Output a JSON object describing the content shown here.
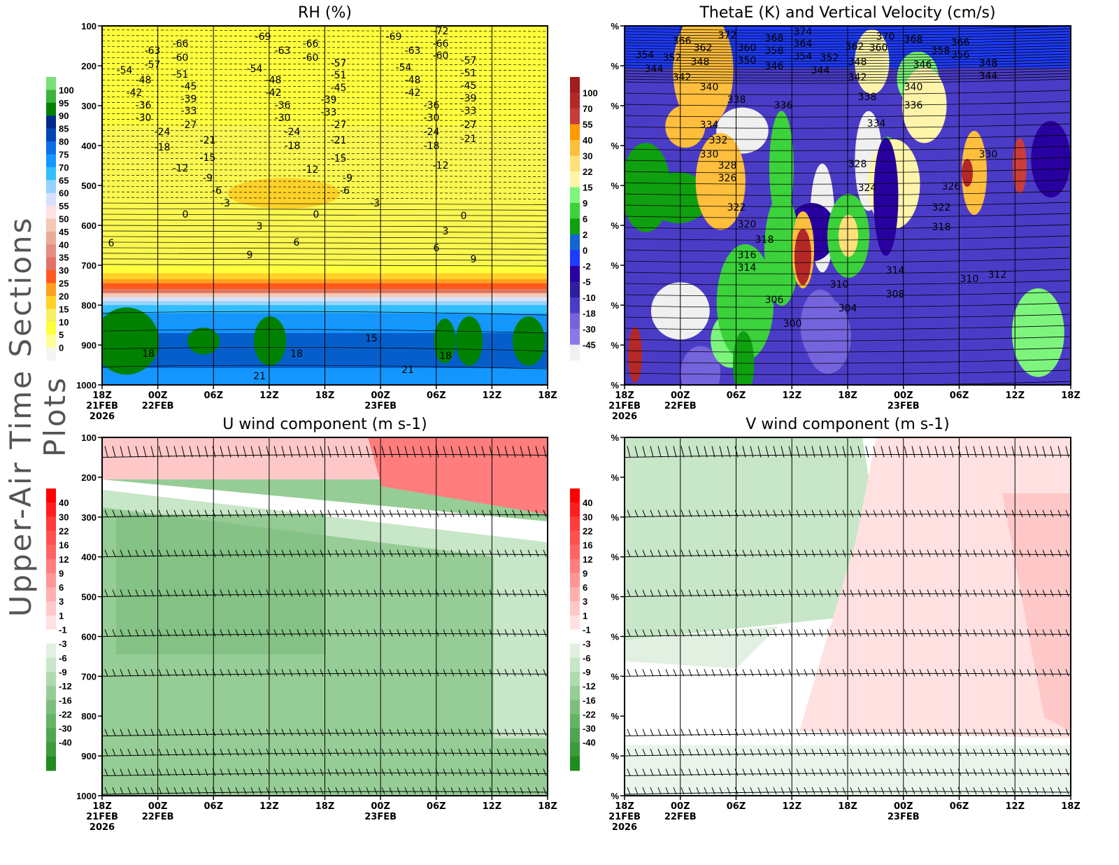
{
  "side_title": "Upper-Air Time Sections Plots",
  "x_ticks": [
    {
      "time": "18Z",
      "date": "21FEB",
      "year": "2026"
    },
    {
      "time": "00Z",
      "date": "22FEB",
      "year": ""
    },
    {
      "time": "06Z",
      "date": "",
      "year": ""
    },
    {
      "time": "12Z",
      "date": "",
      "year": ""
    },
    {
      "time": "18Z",
      "date": "",
      "year": ""
    },
    {
      "time": "00Z",
      "date": "23FEB",
      "year": ""
    },
    {
      "time": "06Z",
      "date": "",
      "year": ""
    },
    {
      "time": "12Z",
      "date": "",
      "year": ""
    },
    {
      "time": "18Z",
      "date": "",
      "year": ""
    }
  ],
  "chart_data": [
    {
      "type": "heatmap",
      "title": "RH (%)",
      "y_ticks": [
        "100",
        "200",
        "300",
        "400",
        "500",
        "600",
        "700",
        "800",
        "900",
        "1000"
      ],
      "ylim": [
        1000,
        100
      ],
      "colorbar": {
        "labels": [
          "100",
          "95",
          "90",
          "85",
          "80",
          "75",
          "70",
          "65",
          "60",
          "55",
          "50",
          "45",
          "40",
          "35",
          "30",
          "25",
          "20",
          "15",
          "10",
          "5",
          "0"
        ],
        "colors": [
          "#78e078",
          "#3cb43c",
          "#008200",
          "#002a8c",
          "#0046b4",
          "#0a6ee6",
          "#1496ff",
          "#32beff",
          "#96d2ff",
          "#d7e1ff",
          "#ffe1e6",
          "#f5c8b4",
          "#ebaa96",
          "#e68c82",
          "#e17364",
          "#ff5a1e",
          "#ffa01e",
          "#ffd228",
          "#f5f064",
          "#ffff3c",
          "#ffff96",
          "#f5f5f5"
        ]
      },
      "contour_labels": [
        "-69",
        "-66",
        "-63",
        "-60",
        "-57",
        "-54",
        "-48",
        "-51",
        "-45",
        "-42",
        "-39",
        "-36",
        "-33",
        "-30",
        "-27",
        "-24",
        "-21",
        "-18",
        "-15",
        "-12",
        "-9",
        "-6",
        "-3",
        "0",
        "3",
        "6",
        "9",
        "18",
        "21",
        "-63",
        "-66",
        "-60",
        "-54",
        "-48",
        "-42",
        "-36",
        "-30",
        "-24",
        "-18",
        "-57",
        "-51",
        "-45",
        "-39",
        "-33",
        "-27",
        "-21",
        "-15",
        "-12",
        "-9",
        "-6",
        "0",
        "6",
        "18",
        "15",
        "-3",
        "-69",
        "-72",
        "-66",
        "-63",
        "-60",
        "-54",
        "-48",
        "-42",
        "-57",
        "-51",
        "-45",
        "-39",
        "-36",
        "-33",
        "-30",
        "-27",
        "-24",
        "-21",
        "-18",
        "-12",
        "0",
        "3",
        "6",
        "9",
        "21",
        "18"
      ]
    },
    {
      "type": "heatmap",
      "title": "ThetaE (K) and Vertical Velocity (cm/s)",
      "y_ticks": [
        "%",
        "%",
        "%",
        "%",
        "%",
        "%",
        "%",
        "%",
        "%",
        "%"
      ],
      "colorbar": {
        "labels": [
          "100",
          "70",
          "55",
          "40",
          "30",
          "22",
          "15",
          "9",
          "6",
          "2",
          "0",
          "-2",
          "-5",
          "-10",
          "-18",
          "-30",
          "-45"
        ],
        "colors": [
          "#a01e1e",
          "#b42828",
          "#c83c3c",
          "#ff9b00",
          "#ffbe3c",
          "#ffe178",
          "#fff5aa",
          "#7df57d",
          "#3cd23c",
          "#0fa00f",
          "#1464d2",
          "#1e3cff",
          "#2800a0",
          "#2d1ea0",
          "#4b3cc8",
          "#7564dc",
          "#8c78eb",
          "#f0f0f0"
        ]
      },
      "contour_labels": [
        "372",
        "374",
        "366",
        "368",
        "370",
        "368",
        "362",
        "360",
        "358",
        "364",
        "362",
        "360",
        "358",
        "366",
        "356",
        "354",
        "352",
        "348",
        "350",
        "346",
        "354",
        "352",
        "348",
        "346",
        "348",
        "344",
        "344",
        "344",
        "342",
        "342",
        "340",
        "340",
        "338",
        "338",
        "336",
        "336",
        "334",
        "334",
        "332",
        "330",
        "330",
        "328",
        "328",
        "326",
        "326",
        "324",
        "322",
        "322",
        "320",
        "318",
        "318",
        "316",
        "314",
        "314",
        "312",
        "310",
        "310",
        "308",
        "306",
        "304",
        "300"
      ]
    },
    {
      "type": "heatmap",
      "title": "U wind component (m s-1)",
      "y_ticks": [
        "100",
        "200",
        "300",
        "400",
        "500",
        "600",
        "700",
        "800",
        "900",
        "1000"
      ],
      "ylim": [
        1000,
        100
      ],
      "colorbar": {
        "labels": [
          "40",
          "30",
          "22",
          "16",
          "12",
          "9",
          "6",
          "3",
          "1",
          "-1",
          "-3",
          "-6",
          "-9",
          "-12",
          "-16",
          "-22",
          "-30",
          "-40"
        ],
        "colors": [
          "#ff0000",
          "#ff1e1e",
          "#ff3c3c",
          "#ff5050",
          "#ff6464",
          "#ff7d7d",
          "#ff9696",
          "#ffafaf",
          "#ffc8c8",
          "#ffe1e1",
          "#ffffff",
          "#e1f0e1",
          "#c8e6c8",
          "#afdaaf",
          "#96cd96",
          "#7dbe7d",
          "#64b464",
          "#50a550",
          "#3c9b3c",
          "#1e8c1e"
        ]
      }
    },
    {
      "type": "heatmap",
      "title": "V wind component (m s-1)",
      "y_ticks": [
        "%",
        "%",
        "%",
        "%",
        "%",
        "%",
        "%",
        "%",
        "%",
        "%"
      ],
      "colorbar": {
        "labels": [
          "40",
          "30",
          "22",
          "16",
          "12",
          "9",
          "6",
          "3",
          "1",
          "-1",
          "-3",
          "-6",
          "-9",
          "-12",
          "-16",
          "-22",
          "-30",
          "-40"
        ],
        "colors": [
          "#ff0000",
          "#ff1e1e",
          "#ff3c3c",
          "#ff5050",
          "#ff6464",
          "#ff7d7d",
          "#ff9696",
          "#ffafaf",
          "#ffc8c8",
          "#ffe1e1",
          "#ffffff",
          "#e1f0e1",
          "#c8e6c8",
          "#afdaaf",
          "#96cd96",
          "#7dbe7d",
          "#64b464",
          "#50a550",
          "#3c9b3c",
          "#1e8c1e"
        ]
      }
    }
  ]
}
